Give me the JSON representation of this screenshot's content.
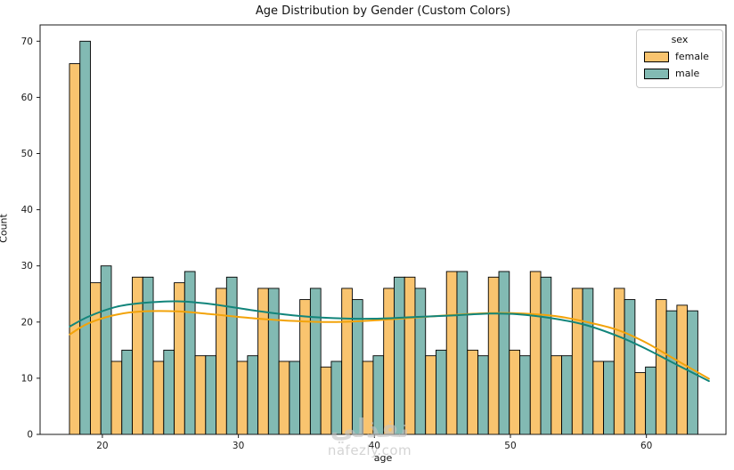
{
  "chart_data": {
    "type": "bar",
    "subtype": "histogram_with_kde",
    "title": "Age Distribution by Gender (Custom Colors)",
    "xlabel": "age",
    "ylabel": "Count",
    "xlim": [
      15.42,
      65.85
    ],
    "ylim": [
      0,
      72.9
    ],
    "x_ticks": [
      20,
      30,
      40,
      50,
      60
    ],
    "y_ticks": [
      0,
      10,
      20,
      30,
      40,
      50,
      60,
      70
    ],
    "grid": false,
    "legend": {
      "title": "sex",
      "position": "upper right",
      "entries": [
        {
          "label": "female",
          "color": "#F9C46F"
        },
        {
          "label": "male",
          "color": "#82BAB3"
        }
      ]
    },
    "bins": {
      "start": 17.58,
      "width": 1.54,
      "count": 30
    },
    "edge_color": "#000000",
    "series": [
      {
        "name": "female",
        "bar_color": "#F9C46F",
        "kde_color": "#F2A30A",
        "counts": [
          66,
          27,
          13,
          28,
          13,
          27,
          14,
          26,
          13,
          26,
          13,
          24,
          12,
          26,
          13,
          26,
          28,
          14,
          29,
          15,
          28,
          15,
          29,
          14,
          26,
          13,
          26,
          11,
          24,
          23
        ]
      },
      {
        "name": "male",
        "bar_color": "#82BAB3",
        "kde_color": "#12857B",
        "counts": [
          70,
          30,
          15,
          28,
          15,
          29,
          14,
          28,
          14,
          26,
          13,
          26,
          13,
          24,
          14,
          28,
          26,
          15,
          29,
          14,
          29,
          14,
          28,
          14,
          26,
          13,
          24,
          12,
          22,
          22
        ]
      }
    ],
    "kde_curves": [
      {
        "name": "female",
        "color": "#F2A30A",
        "points": [
          [
            17.6,
            17.8
          ],
          [
            19,
            19.8
          ],
          [
            21,
            21.3
          ],
          [
            23,
            21.9
          ],
          [
            25.5,
            21.9
          ],
          [
            28,
            21.4
          ],
          [
            31,
            20.7
          ],
          [
            34,
            20.2
          ],
          [
            37,
            20.0
          ],
          [
            40,
            20.3
          ],
          [
            43,
            20.8
          ],
          [
            46,
            21.3
          ],
          [
            48.5,
            21.6
          ],
          [
            51,
            21.5
          ],
          [
            53.5,
            21.0
          ],
          [
            56,
            19.8
          ],
          [
            58,
            18.5
          ],
          [
            60,
            16.3
          ],
          [
            62,
            13.5
          ],
          [
            64.6,
            9.9
          ]
        ]
      },
      {
        "name": "male",
        "color": "#12857B",
        "points": [
          [
            17.6,
            19.2
          ],
          [
            19,
            21.0
          ],
          [
            21,
            22.7
          ],
          [
            23,
            23.4
          ],
          [
            25.5,
            23.7
          ],
          [
            28,
            23.2
          ],
          [
            31,
            22.1
          ],
          [
            34,
            21.2
          ],
          [
            37,
            20.7
          ],
          [
            40,
            20.6
          ],
          [
            43,
            20.9
          ],
          [
            46,
            21.2
          ],
          [
            48.5,
            21.5
          ],
          [
            50.5,
            21.4
          ],
          [
            53,
            20.7
          ],
          [
            55.5,
            19.5
          ],
          [
            58,
            17.4
          ],
          [
            60,
            15.2
          ],
          [
            62,
            12.7
          ],
          [
            64.6,
            9.5
          ]
        ]
      }
    ]
  },
  "watermark": {
    "logo_text": "نفذلي",
    "site_text": "nafezly.com"
  }
}
